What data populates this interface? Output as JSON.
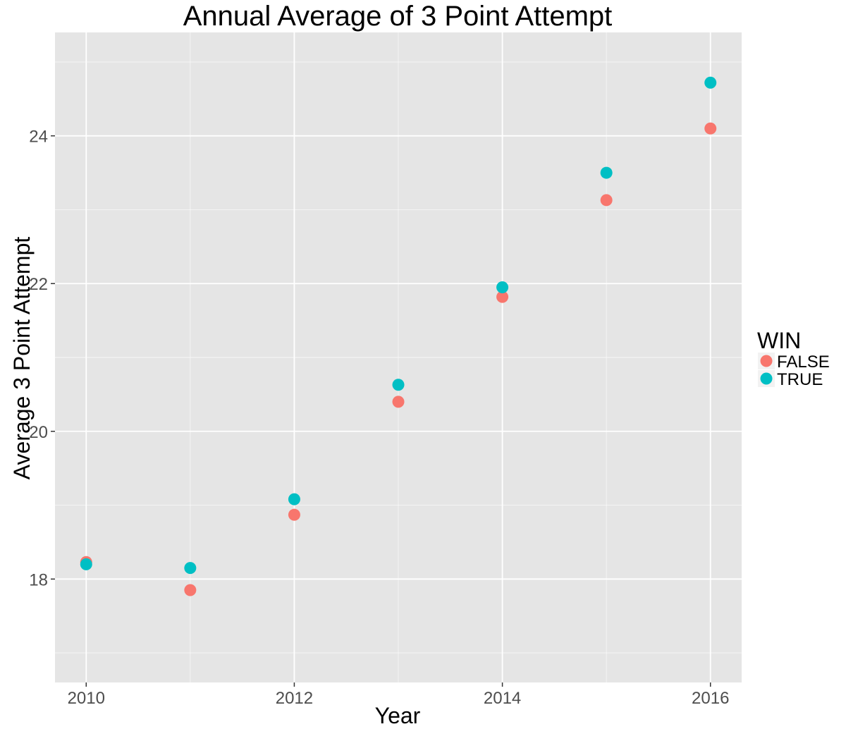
{
  "chart_data": {
    "type": "scatter",
    "title": "Annual Average of 3 Point Attempt",
    "xlabel": "Year",
    "ylabel": "Average 3 Point Attempt",
    "x_ticks": [
      2010,
      2012,
      2014,
      2016
    ],
    "y_ticks": [
      18,
      20,
      22,
      24
    ],
    "xlim": [
      2009.7,
      2016.3
    ],
    "ylim": [
      16.6,
      25.4
    ],
    "grid": true,
    "panel_background": "#e5e5e5",
    "grid_color": "#ffffff",
    "legend": {
      "title": "WIN",
      "position": "right"
    },
    "series": [
      {
        "name": "FALSE",
        "color": "#f8766d",
        "points": [
          {
            "x": 2010,
            "y": 18.23
          },
          {
            "x": 2011,
            "y": 17.85
          },
          {
            "x": 2012,
            "y": 18.87
          },
          {
            "x": 2013,
            "y": 20.4
          },
          {
            "x": 2014,
            "y": 21.82
          },
          {
            "x": 2015,
            "y": 23.13
          },
          {
            "x": 2016,
            "y": 24.1
          }
        ]
      },
      {
        "name": "TRUE",
        "color": "#00bfc4",
        "points": [
          {
            "x": 2010,
            "y": 18.2
          },
          {
            "x": 2011,
            "y": 18.15
          },
          {
            "x": 2012,
            "y": 19.08
          },
          {
            "x": 2013,
            "y": 20.63
          },
          {
            "x": 2014,
            "y": 21.95
          },
          {
            "x": 2015,
            "y": 23.5
          },
          {
            "x": 2016,
            "y": 24.72
          }
        ]
      }
    ]
  }
}
